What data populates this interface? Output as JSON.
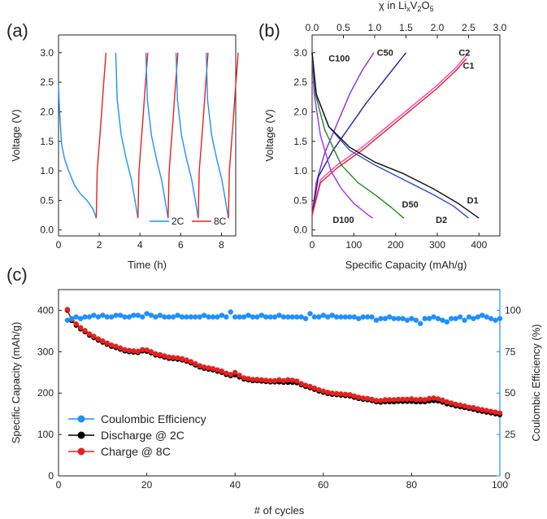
{
  "panels": [
    {
      "id": "a",
      "label": "(a)",
      "xlabel": "Time (h)",
      "ylabel": "Voltage (V)",
      "xlim": [
        0,
        8.7
      ],
      "ylim": [
        -0.1,
        3.3
      ],
      "x_ticks": [
        "0",
        "2",
        "4",
        "6",
        "8"
      ],
      "y_ticks": [
        "0.0",
        "0.5",
        "1.0",
        "1.5",
        "2.0",
        "2.5",
        "3.0"
      ],
      "legend": [
        {
          "label": "2C",
          "color": "#1e90ff"
        },
        {
          "label": "8C",
          "color": "#e8201e"
        }
      ]
    },
    {
      "id": "b",
      "label": "(b)",
      "xlabel": "Specific Capacity (mAh/g)",
      "ylabel": "Voltage (V)",
      "top_label": "χ in Li",
      "top_label_subs": [
        "x",
        "2",
        "5"
      ],
      "top_label_mid": [
        "V",
        "O"
      ],
      "xlim": [
        0,
        450
      ],
      "ylim": [
        -0.1,
        3.3
      ],
      "x_ticks": [
        "0",
        "100",
        "200",
        "300",
        "400"
      ],
      "y_ticks": [
        "0.0",
        "0.5",
        "1.0",
        "1.5",
        "2.0",
        "2.5",
        "3.0"
      ],
      "top_ticks": [
        "0.0",
        "0.5",
        "1.0",
        "1.5",
        "2.0",
        "2.5",
        "3.0"
      ],
      "curve_labels": [
        "C100",
        "C50",
        "C2",
        "C1",
        "D50",
        "D1",
        "D100",
        "D2"
      ]
    },
    {
      "id": "c",
      "label": "(c)",
      "xlabel": "# of cycles",
      "ylabel": "Specific Capacity (mAh/g)",
      "y2label": "Coulombic Efficiency (%)",
      "xlim": [
        0,
        100
      ],
      "ylim": [
        0,
        450
      ],
      "y2lim": [
        0,
        112.5
      ],
      "x_ticks": [
        "0",
        "20",
        "40",
        "60",
        "80",
        "100"
      ],
      "y_ticks": [
        "0",
        "100",
        "200",
        "300",
        "400"
      ],
      "y2_ticks": [
        "0",
        "25",
        "50",
        "75",
        "100"
      ],
      "legend": [
        {
          "label": "Coulombic Efficiency",
          "color": "#1e90ff"
        },
        {
          "label": "Discharge @ 2C",
          "color": "#000000"
        },
        {
          "label": "Charge @ 8C",
          "color": "#e8201e"
        }
      ]
    }
  ],
  "chart_data": [
    {
      "type": "line",
      "panel": "a",
      "series": [
        {
          "name": "2C",
          "color": "#1e90ff",
          "x": [
            0,
            0.05,
            0.15,
            0.3,
            0.5,
            0.8,
            1.1,
            1.4,
            1.7,
            1.85
          ],
          "y": [
            2.45,
            2.0,
            1.45,
            1.2,
            1.0,
            0.75,
            0.6,
            0.5,
            0.35,
            0.2
          ]
        },
        {
          "name": "8C",
          "color": "#e8201e",
          "x": [
            1.85,
            1.9,
            2.0,
            2.1,
            2.2,
            2.3,
            2.33
          ],
          "y": [
            0.2,
            1.0,
            1.45,
            1.9,
            2.4,
            2.85,
            3.0
          ]
        }
      ]
    },
    {
      "type": "line",
      "panel": "b",
      "series": [
        {
          "label": "C100",
          "color": "#8a2be2",
          "x": [
            0,
            10,
            30,
            60,
            90,
            120,
            148
          ],
          "y": [
            0.25,
            0.8,
            1.3,
            1.8,
            2.3,
            2.7,
            3.0
          ]
        },
        {
          "label": "C50",
          "color": "#1f1f8f",
          "x": [
            0,
            15,
            50,
            90,
            130,
            180,
            225
          ],
          "y": [
            0.25,
            0.9,
            1.35,
            1.75,
            2.15,
            2.6,
            3.0
          ]
        },
        {
          "label": "C2",
          "color": "#ff3fc8",
          "x": [
            0,
            20,
            60,
            120,
            180,
            240,
            300,
            345,
            375
          ],
          "y": [
            0.25,
            0.85,
            1.1,
            1.4,
            1.75,
            2.1,
            2.45,
            2.75,
            3.0
          ]
        },
        {
          "label": "C1",
          "color": "#e8201e",
          "x": [
            0,
            20,
            60,
            120,
            180,
            240,
            300,
            345,
            370
          ],
          "y": [
            0.25,
            0.8,
            1.05,
            1.35,
            1.7,
            2.05,
            2.4,
            2.7,
            2.9
          ]
        },
        {
          "label": "D100",
          "color": "#9b30ff",
          "x": [
            0,
            5,
            20,
            45,
            70,
            100,
            130,
            145
          ],
          "y": [
            3.0,
            2.3,
            1.6,
            1.0,
            0.7,
            0.45,
            0.28,
            0.2
          ]
        },
        {
          "label": "D50",
          "color": "#1e8c1e",
          "x": [
            0,
            8,
            30,
            70,
            110,
            150,
            190,
            220
          ],
          "y": [
            3.0,
            2.3,
            1.7,
            1.1,
            0.8,
            0.6,
            0.38,
            0.2
          ]
        },
        {
          "label": "D2",
          "color": "#2a4bd7",
          "x": [
            0,
            10,
            40,
            90,
            150,
            220,
            290,
            340,
            375
          ],
          "y": [
            3.0,
            2.3,
            1.75,
            1.35,
            1.1,
            0.85,
            0.6,
            0.4,
            0.2
          ]
        },
        {
          "label": "D1",
          "color": "#111111",
          "x": [
            0,
            10,
            40,
            90,
            150,
            220,
            290,
            350,
            400
          ],
          "y": [
            3.0,
            2.3,
            1.75,
            1.4,
            1.15,
            0.95,
            0.7,
            0.45,
            0.2
          ]
        }
      ]
    },
    {
      "type": "scatter",
      "panel": "c",
      "x": [
        2,
        3,
        4,
        5,
        6,
        7,
        8,
        9,
        10,
        11,
        12,
        13,
        14,
        15,
        16,
        17,
        18,
        19,
        20,
        21,
        22,
        23,
        24,
        25,
        26,
        27,
        28,
        29,
        30,
        31,
        32,
        33,
        34,
        35,
        36,
        37,
        38,
        39,
        40,
        41,
        42,
        43,
        44,
        45,
        46,
        47,
        48,
        49,
        50,
        51,
        52,
        53,
        54,
        55,
        56,
        57,
        58,
        59,
        60,
        61,
        62,
        63,
        64,
        65,
        66,
        67,
        68,
        69,
        70,
        71,
        72,
        73,
        74,
        75,
        76,
        77,
        78,
        79,
        80,
        81,
        82,
        83,
        84,
        85,
        86,
        87,
        88,
        89,
        90,
        91,
        92,
        93,
        94,
        95,
        96,
        97,
        98,
        99,
        100
      ],
      "series": [
        {
          "name": "Discharge @ 2C",
          "axis": "left",
          "color": "#000000",
          "y": [
            400,
            375,
            364,
            355,
            348,
            340,
            334,
            328,
            323,
            318,
            313,
            310,
            306,
            302,
            300,
            299,
            298,
            302,
            301,
            297,
            292,
            290,
            287,
            284,
            283,
            282,
            280,
            277,
            273,
            268,
            263,
            260,
            258,
            256,
            253,
            250,
            245,
            242,
            244,
            239,
            234,
            232,
            230,
            230,
            229,
            228,
            227,
            227,
            227,
            226,
            226,
            226,
            225,
            220,
            216,
            213,
            209,
            205,
            202,
            199,
            197,
            196,
            195,
            194,
            193,
            190,
            187,
            185,
            184,
            182,
            179,
            178,
            179,
            179,
            179,
            180,
            180,
            180,
            180,
            179,
            179,
            179,
            181,
            182,
            181,
            178,
            174,
            172,
            169,
            167,
            165,
            163,
            161,
            158,
            156,
            154,
            152,
            150,
            148
          ]
        },
        {
          "name": "Charge @ 8C",
          "axis": "left",
          "color": "#e8201e",
          "y": [
            402,
            378,
            367,
            358,
            351,
            343,
            337,
            331,
            326,
            321,
            316,
            313,
            309,
            305,
            303,
            302,
            301,
            305,
            304,
            300,
            295,
            293,
            290,
            287,
            286,
            285,
            283,
            280,
            276,
            271,
            266,
            263,
            261,
            259,
            256,
            253,
            248,
            245,
            250,
            243,
            237,
            235,
            233,
            233,
            232,
            231,
            230,
            230,
            232,
            230,
            232,
            231,
            229,
            223,
            219,
            216,
            212,
            208,
            205,
            202,
            200,
            199,
            198,
            197,
            196,
            193,
            190,
            188,
            187,
            185,
            182,
            182,
            184,
            184,
            184,
            185,
            185,
            185,
            186,
            184,
            185,
            184,
            187,
            188,
            186,
            183,
            179,
            176,
            173,
            171,
            169,
            166,
            165,
            162,
            160,
            158,
            156,
            154,
            152
          ]
        },
        {
          "name": "Coulombic Efficiency",
          "axis": "right",
          "color": "#1e90ff",
          "y": [
            94,
            95,
            96,
            95,
            96,
            96,
            97,
            96,
            97,
            96,
            96,
            97,
            97,
            96,
            96,
            97,
            97,
            96,
            98,
            97,
            96,
            97,
            96,
            96,
            96,
            97,
            96,
            96,
            96,
            96,
            96,
            97,
            96,
            96,
            96,
            97,
            96,
            99,
            96,
            96,
            96,
            97,
            96,
            96,
            97,
            96,
            96,
            96,
            97,
            96,
            96,
            96,
            96,
            96,
            95,
            98,
            96,
            96,
            97,
            96,
            97,
            96,
            96,
            96,
            96,
            96,
            95,
            96,
            96,
            96,
            94,
            95,
            95,
            96,
            95,
            95,
            95,
            94,
            95,
            94,
            92,
            95,
            95,
            96,
            95,
            94,
            93,
            95,
            95,
            96,
            94,
            96,
            95,
            96,
            97,
            96,
            95,
            94,
            95
          ]
        }
      ]
    }
  ]
}
